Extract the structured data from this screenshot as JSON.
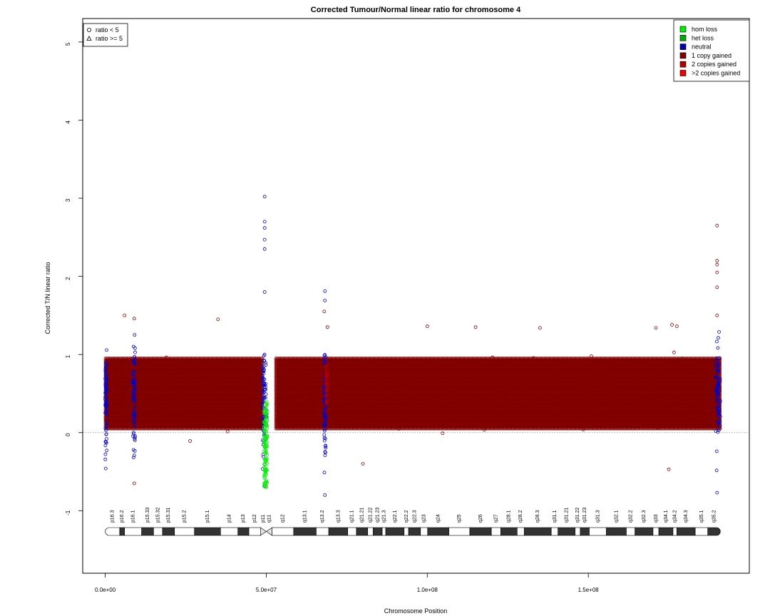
{
  "chart_data": {
    "type": "scatter",
    "title": "Corrected Tumour/Normal linear ratio for chromosome  4",
    "xlabel": "Chromosome Position",
    "ylabel": "Corrected T/N linear ratio",
    "xlim": [
      -7000000,
      200000000
    ],
    "ylim": [
      -1.8,
      5.3
    ],
    "xticks": [
      {
        "value": 0,
        "label": "0.0e+00"
      },
      {
        "value": 50000000,
        "label": "5.0e+07"
      },
      {
        "value": 100000000,
        "label": "1.0e+08"
      },
      {
        "value": 150000000,
        "label": "1.5e+08"
      }
    ],
    "yticks": [
      -1,
      0,
      1,
      2,
      3,
      4,
      5
    ],
    "reference_line": 0,
    "shape_legend": {
      "placement": "top-left",
      "entries": [
        {
          "shape": "circle",
          "label": "ratio < 5"
        },
        {
          "shape": "triangle",
          "label": "ratio >= 5"
        }
      ]
    },
    "color_legend": {
      "placement": "top-right",
      "entries": [
        {
          "label": "hom loss",
          "color": "#00ee00"
        },
        {
          "label": "het loss",
          "color": "#00aa00"
        },
        {
          "label": "neutral",
          "color": "#0000aa"
        },
        {
          "label": "1 copy gained",
          "color": "#800000"
        },
        {
          "label": "2 copies gained",
          "color": "#b00000"
        },
        {
          "label": ">2 copies gained",
          "color": "#ee0000"
        }
      ]
    },
    "series": [
      {
        "name": "1 copy gained",
        "color": "#800000",
        "segments": [
          [
            0,
            48800000
          ],
          [
            52800000,
            191000000
          ]
        ],
        "typical_range": [
          0.05,
          0.95
        ]
      },
      {
        "name": "neutral",
        "color": "#0000cc",
        "regions": [
          [
            0,
            500000
          ],
          [
            8600000,
            9300000
          ],
          [
            48800000,
            50000000
          ],
          [
            68000000,
            68500000
          ],
          [
            189500000,
            191000000
          ]
        ],
        "extreme_points": [
          {
            "x": 49500000,
            "y": 3.02
          },
          {
            "x": 49500000,
            "y": 2.7
          },
          {
            "x": 49500000,
            "y": 2.62
          },
          {
            "x": 49500000,
            "y": 2.47
          },
          {
            "x": 49500000,
            "y": 2.35
          },
          {
            "x": 49500000,
            "y": 1.8
          },
          {
            "x": 68200000,
            "y": 1.81
          },
          {
            "x": 68200000,
            "y": 1.69
          },
          {
            "x": 68200000,
            "y": -0.8
          },
          {
            "x": 190000000,
            "y": -0.77
          }
        ]
      },
      {
        "name": "hom loss",
        "color": "#00ee00",
        "regions": [
          [
            49300000,
            50300000
          ]
        ],
        "typical_range": [
          -0.7,
          0.4
        ]
      },
      {
        "name": "2 copies gained",
        "color": "#b00000",
        "regions": [
          [
            68500000,
            69000000
          ]
        ]
      }
    ],
    "outliers": [
      {
        "x": 6000000,
        "y": 1.5
      },
      {
        "x": 9000000,
        "y": 1.46
      },
      {
        "x": 35000000,
        "y": 1.45
      },
      {
        "x": 68000000,
        "y": 1.55
      },
      {
        "x": 69000000,
        "y": 1.35
      },
      {
        "x": 9000000,
        "y": -0.65
      },
      {
        "x": 80000000,
        "y": -0.4
      },
      {
        "x": 175000000,
        "y": -0.47
      },
      {
        "x": 190000000,
        "y": 2.65
      },
      {
        "x": 190000000,
        "y": 2.2
      },
      {
        "x": 190000000,
        "y": 2.15
      },
      {
        "x": 190000000,
        "y": 2.05
      },
      {
        "x": 190000000,
        "y": 1.86
      },
      {
        "x": 190000000,
        "y": 1.5
      },
      {
        "x": 176000000,
        "y": 1.38
      },
      {
        "x": 177500000,
        "y": 1.36
      },
      {
        "x": 100000000,
        "y": 1.36
      },
      {
        "x": 115000000,
        "y": 1.35
      },
      {
        "x": 135000000,
        "y": 1.34
      },
      {
        "x": 171000000,
        "y": 1.34
      }
    ],
    "ideogram": {
      "bands": [
        {
          "name": "p16.3",
          "start": 0,
          "end": 4500000,
          "stain": "gneg"
        },
        {
          "name": "p16.2",
          "start": 4500000,
          "end": 6000000,
          "stain": "gpos"
        },
        {
          "name": "p16.1",
          "start": 6000000,
          "end": 11300000,
          "stain": "gneg"
        },
        {
          "name": "p15.33",
          "start": 11300000,
          "end": 15000000,
          "stain": "gpos"
        },
        {
          "name": "p15.32",
          "start": 15000000,
          "end": 17800000,
          "stain": "gneg"
        },
        {
          "name": "p15.31",
          "start": 17800000,
          "end": 21500000,
          "stain": "gpos"
        },
        {
          "name": "p15.2",
          "start": 21500000,
          "end": 27700000,
          "stain": "gneg"
        },
        {
          "name": "p15.1",
          "start": 27700000,
          "end": 35800000,
          "stain": "gpos"
        },
        {
          "name": "p14",
          "start": 35800000,
          "end": 41200000,
          "stain": "gneg"
        },
        {
          "name": "p13",
          "start": 41200000,
          "end": 44600000,
          "stain": "gpos"
        },
        {
          "name": "p12",
          "start": 44600000,
          "end": 48200000,
          "stain": "gneg"
        },
        {
          "name": "p11",
          "start": 48200000,
          "end": 50000000,
          "stain": "acen"
        },
        {
          "name": "q11",
          "start": 50000000,
          "end": 51800000,
          "stain": "acen"
        },
        {
          "name": "q12",
          "start": 51800000,
          "end": 58500000,
          "stain": "gneg"
        },
        {
          "name": "q13.1",
          "start": 58500000,
          "end": 65500000,
          "stain": "gpos"
        },
        {
          "name": "q13.2",
          "start": 65500000,
          "end": 69400000,
          "stain": "gneg"
        },
        {
          "name": "q13.3",
          "start": 69400000,
          "end": 75300000,
          "stain": "gpos"
        },
        {
          "name": "q21.1",
          "start": 75300000,
          "end": 78000000,
          "stain": "gneg"
        },
        {
          "name": "q21.21",
          "start": 78000000,
          "end": 81500000,
          "stain": "gpos"
        },
        {
          "name": "q21.22",
          "start": 81500000,
          "end": 83200000,
          "stain": "gneg"
        },
        {
          "name": "q21.23",
          "start": 83200000,
          "end": 86000000,
          "stain": "gpos"
        },
        {
          "name": "q21.3",
          "start": 86000000,
          "end": 87100000,
          "stain": "gneg"
        },
        {
          "name": "q22.1",
          "start": 87100000,
          "end": 92800000,
          "stain": "gpos"
        },
        {
          "name": "q22.2",
          "start": 92800000,
          "end": 94200000,
          "stain": "gneg"
        },
        {
          "name": "q22.3",
          "start": 94200000,
          "end": 97900000,
          "stain": "gpos"
        },
        {
          "name": "q23",
          "start": 97900000,
          "end": 100100000,
          "stain": "gneg"
        },
        {
          "name": "q24",
          "start": 100100000,
          "end": 106700000,
          "stain": "gpos"
        },
        {
          "name": "q25",
          "start": 106700000,
          "end": 113200000,
          "stain": "gneg"
        },
        {
          "name": "q26",
          "start": 113200000,
          "end": 119900000,
          "stain": "gpos"
        },
        {
          "name": "q27",
          "start": 119900000,
          "end": 122800000,
          "stain": "gneg"
        },
        {
          "name": "q28.1",
          "start": 122800000,
          "end": 127900000,
          "stain": "gpos"
        },
        {
          "name": "q28.2",
          "start": 127900000,
          "end": 130100000,
          "stain": "gneg"
        },
        {
          "name": "q28.3",
          "start": 130100000,
          "end": 138500000,
          "stain": "gpos"
        },
        {
          "name": "q31.1",
          "start": 138500000,
          "end": 140600000,
          "stain": "gneg"
        },
        {
          "name": "q31.21",
          "start": 140600000,
          "end": 145900000,
          "stain": "gpos"
        },
        {
          "name": "q31.22",
          "start": 145900000,
          "end": 147500000,
          "stain": "gneg"
        },
        {
          "name": "q31.23",
          "start": 147500000,
          "end": 150300000,
          "stain": "gpos"
        },
        {
          "name": "q31.3",
          "start": 150300000,
          "end": 155600000,
          "stain": "gneg"
        },
        {
          "name": "q32.1",
          "start": 155600000,
          "end": 161800000,
          "stain": "gpos"
        },
        {
          "name": "q32.2",
          "start": 161800000,
          "end": 164500000,
          "stain": "gneg"
        },
        {
          "name": "q32.3",
          "start": 164500000,
          "end": 170100000,
          "stain": "gpos"
        },
        {
          "name": "q33",
          "start": 170100000,
          "end": 171900000,
          "stain": "gneg"
        },
        {
          "name": "q34.1",
          "start": 171900000,
          "end": 176300000,
          "stain": "gpos"
        },
        {
          "name": "q34.2",
          "start": 176300000,
          "end": 177500000,
          "stain": "gneg"
        },
        {
          "name": "q34.3",
          "start": 177500000,
          "end": 183200000,
          "stain": "gpos"
        },
        {
          "name": "q35.1",
          "start": 183200000,
          "end": 187100000,
          "stain": "gneg"
        },
        {
          "name": "q35.2",
          "start": 187100000,
          "end": 191000000,
          "stain": "gpos"
        }
      ]
    }
  }
}
